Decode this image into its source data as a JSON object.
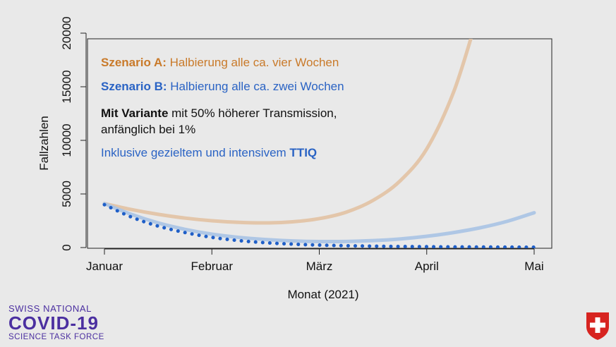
{
  "chart_data": {
    "type": "line",
    "xlabel": "Monat (2021)",
    "ylabel": "Fallzahlen",
    "x_ticks": [
      "Januar",
      "Februar",
      "März",
      "April",
      "Mai"
    ],
    "x_range": [
      0,
      4
    ],
    "y_ticks": [
      "0",
      "5000",
      "10000",
      "15000",
      "20000"
    ],
    "ylim": [
      0,
      20000
    ],
    "grid": false,
    "series": [
      {
        "key": "A",
        "color": "#e2c2a3",
        "style": "solid",
        "x": [
          0,
          0.25,
          0.5,
          0.75,
          1,
          1.25,
          1.5,
          1.75,
          2,
          2.25,
          2.5,
          2.75,
          3,
          3.25,
          3.45
        ],
        "values": [
          4100,
          3550,
          3100,
          2750,
          2500,
          2350,
          2300,
          2400,
          2700,
          3300,
          4400,
          6200,
          9200,
          14500,
          20800
        ]
      },
      {
        "key": "B",
        "color": "#a9c3e4",
        "style": "solid",
        "x": [
          0,
          0.25,
          0.5,
          0.75,
          1,
          1.25,
          1.5,
          1.75,
          2,
          2.25,
          2.5,
          2.75,
          3,
          3.25,
          3.5,
          3.75,
          4
        ],
        "values": [
          4100,
          3100,
          2300,
          1700,
          1250,
          950,
          750,
          620,
          560,
          570,
          650,
          800,
          1050,
          1400,
          1850,
          2450,
          3250
        ]
      },
      {
        "key": "TTIQ",
        "color": "#1f5fc8",
        "style": "dotted",
        "x": [
          0,
          0.25,
          0.5,
          0.75,
          1,
          1.25,
          1.5,
          1.75,
          2,
          2.25,
          2.5,
          2.75,
          3,
          3.25,
          3.5,
          3.75,
          4
        ],
        "values": [
          4000,
          2850,
          2000,
          1400,
          950,
          650,
          450,
          320,
          230,
          170,
          130,
          100,
          80,
          60,
          50,
          40,
          30
        ]
      }
    ],
    "annotations": [
      {
        "bold": "Szenario A:",
        "text": " Halbierung alle ca. vier Wochen",
        "color": "#c97a2a"
      },
      {
        "bold": "Szenario B:",
        "text": " Halbierung alle ca. zwei Wochen",
        "color": "#2a63c4"
      },
      {
        "bold": "Mit Variante",
        "text": " mit 50% höherer Transmission,",
        "color": "#111111"
      },
      {
        "bold": "",
        "text": "anfänglich bei 1%",
        "color": "#111111"
      },
      {
        "bold": "TTIQ",
        "text": "Inklusive gezieltem und intensivem ",
        "color": "#2a63c4",
        "bold_after": true
      }
    ]
  },
  "logo": {
    "line1": "SWISS NATIONAL",
    "line2": "COVID-19",
    "line3": "SCIENCE TASK FORCE"
  },
  "flag_icon": "swiss-shield-icon"
}
